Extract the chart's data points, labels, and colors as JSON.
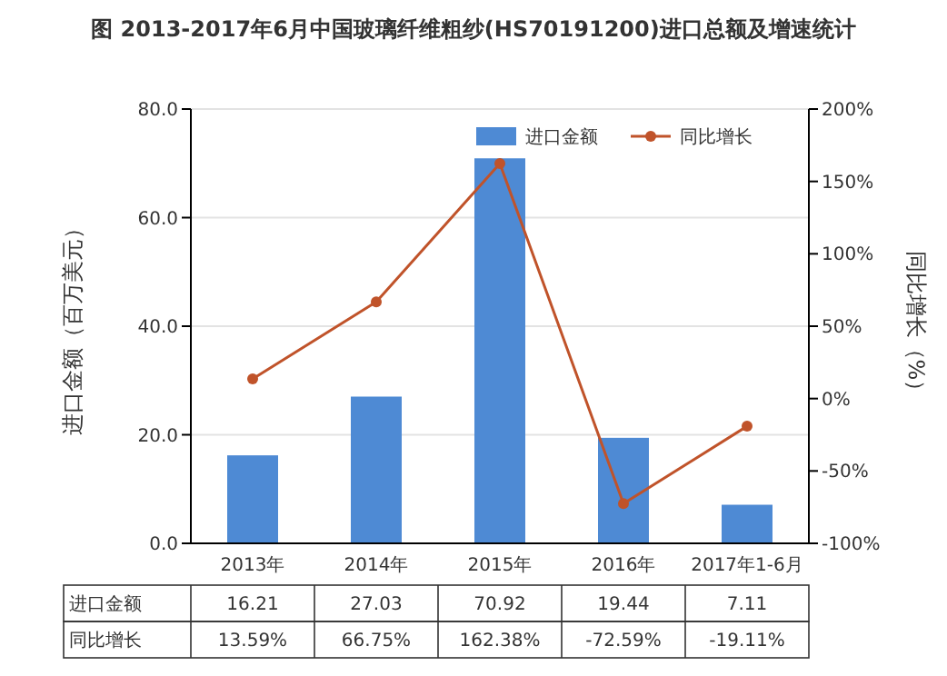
{
  "chart_data": {
    "type": "bar",
    "title": "图 2013-2017年6月中国玻璃纤维粗纱(HS70191200)进口总额及增速统计",
    "categories": [
      "2013年",
      "2014年",
      "2015年",
      "2016年",
      "2017年1-6月"
    ],
    "ylabel": "进口金额（百万美元）",
    "y2label": "同比增长（%）",
    "series": [
      {
        "name": "进口金额",
        "color": "#4e8ad4",
        "values": [
          16.21,
          27.03,
          70.92,
          19.44,
          7.11
        ],
        "value_labels": [
          "16.21",
          "27.03",
          "70.92",
          "19.44",
          "7.11"
        ]
      },
      {
        "name": "同比增长",
        "type": "line",
        "axis": "y2",
        "color": "#c0532a",
        "marker": "circle",
        "values": [
          13.59,
          66.75,
          162.38,
          -72.59,
          -19.11
        ],
        "value_labels": [
          "13.59%",
          "66.75%",
          "162.38%",
          "-72.59%",
          "-19.11%"
        ]
      }
    ],
    "ylim": [
      0,
      80
    ],
    "yticks": [
      {
        "value": 0,
        "label": "0.0"
      },
      {
        "value": 20,
        "label": "20.0"
      },
      {
        "value": 40,
        "label": "40.0"
      },
      {
        "value": 60,
        "label": "60.0"
      },
      {
        "value": 80,
        "label": "80.0"
      }
    ],
    "y2lim": [
      -100,
      200
    ],
    "y2ticks": [
      {
        "value": -100,
        "label": "-100%"
      },
      {
        "value": -50,
        "label": "-50%"
      },
      {
        "value": 0,
        "label": "0%"
      },
      {
        "value": 50,
        "label": "50%"
      },
      {
        "value": 100,
        "label": "100%"
      },
      {
        "value": 150,
        "label": "150%"
      },
      {
        "value": 200,
        "label": "200%"
      }
    ],
    "grid": "y",
    "legend": "top right"
  }
}
